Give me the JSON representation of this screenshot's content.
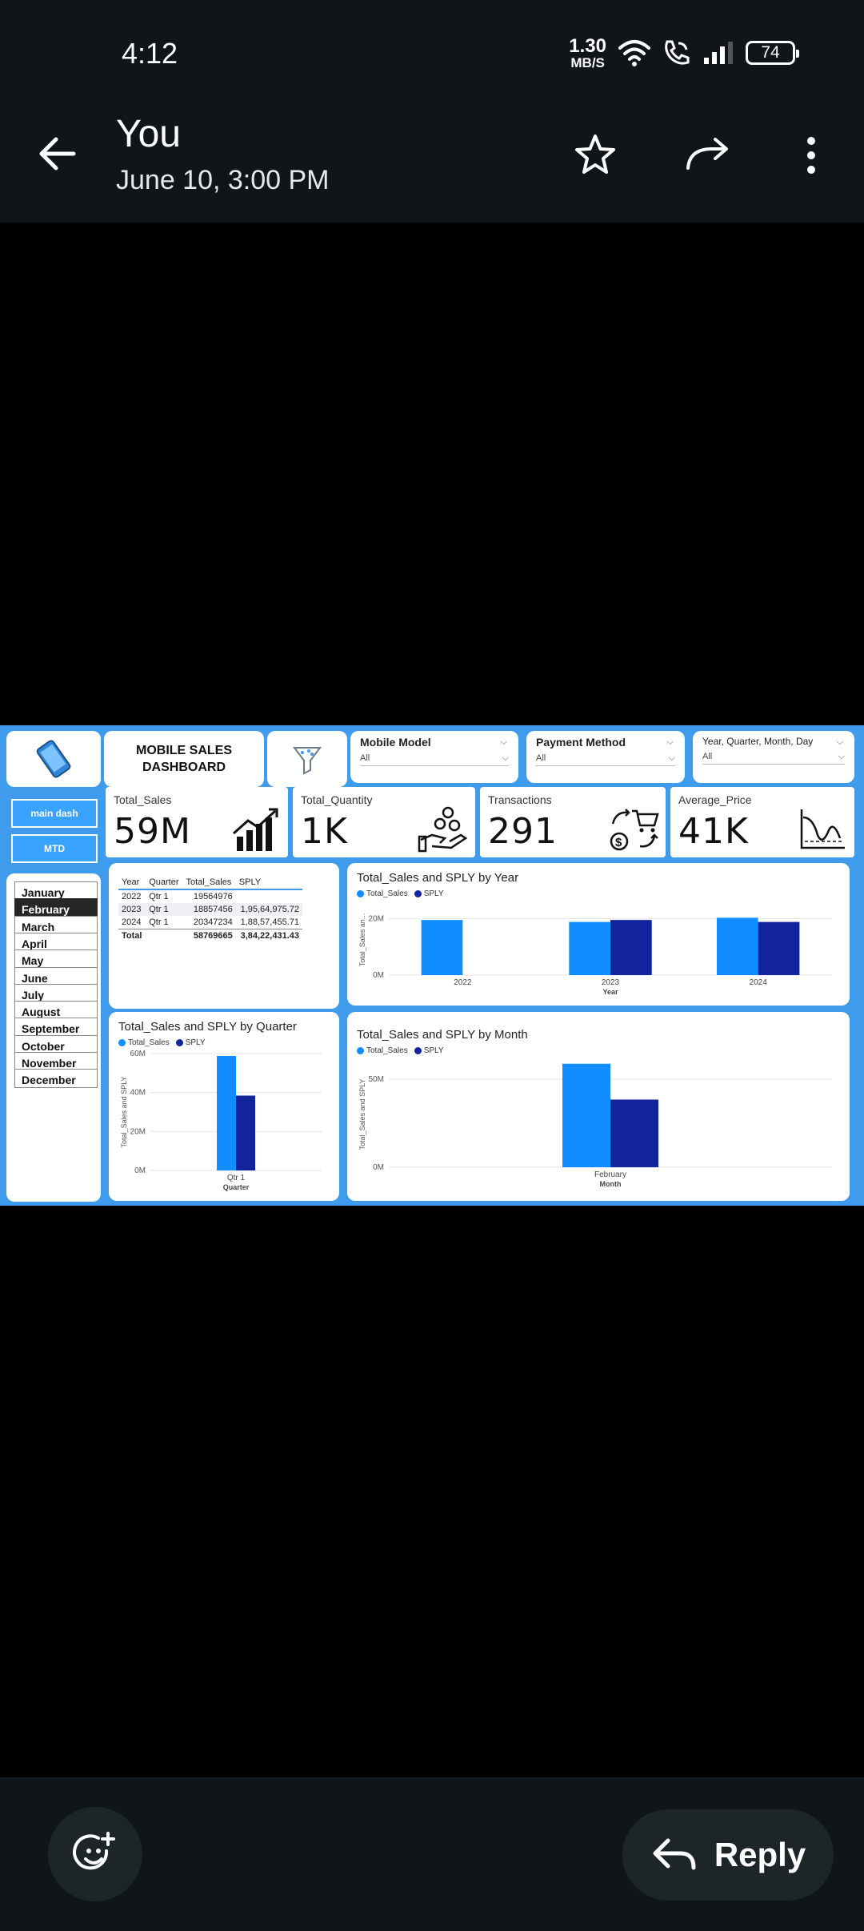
{
  "status": {
    "time": "4:12",
    "net_speed_value": "1.30",
    "net_speed_unit": "MB/S",
    "battery": "74"
  },
  "header": {
    "sender": "You",
    "datetime": "June 10, 3:00 PM",
    "icons": [
      "back-arrow-icon",
      "star-icon",
      "forward-icon",
      "more-vert-icon"
    ]
  },
  "dashboard": {
    "title": "MOBILE SALES DASHBOARD",
    "nav": {
      "main_dash": "main dash",
      "mtd": "MTD",
      "more": "..."
    },
    "slicers": [
      {
        "label": "Mobile Model",
        "value": "All"
      },
      {
        "label": "Payment Method",
        "value": "All"
      },
      {
        "label": "Year, Quarter, Month, Day",
        "value": "All"
      }
    ],
    "kpis": [
      {
        "label": "Total_Sales",
        "value": "59M",
        "icon": "growth-chart-icon"
      },
      {
        "label": "Total_Quantity",
        "value": "1K",
        "icon": "coins-hand-icon"
      },
      {
        "label": "Transactions",
        "value": "291",
        "icon": "cart-exchange-icon"
      },
      {
        "label": "Average_Price",
        "value": "41K",
        "icon": "distribution-curve-icon"
      }
    ],
    "months": [
      "January",
      "February",
      "March",
      "April",
      "May",
      "June",
      "July",
      "August",
      "September",
      "October",
      "November",
      "December"
    ],
    "selected_month": "February",
    "table": {
      "headers": [
        "Year",
        "Quarter",
        "Total_Sales",
        "SPLY"
      ],
      "rows": [
        [
          "2022",
          "Qtr 1",
          "19564976",
          ""
        ],
        [
          "2023",
          "Qtr 1",
          "18857456",
          "1,95,64,975.72"
        ],
        [
          "2024",
          "Qtr 1",
          "20347234",
          "1,88,57,455.71"
        ]
      ],
      "total": [
        "Total",
        "",
        "58769665",
        "3,84,22,431.43"
      ]
    },
    "colors": {
      "total_sales": "#118dff",
      "sply": "#12239e",
      "background": "#3f9bec"
    }
  },
  "chart_data": [
    {
      "type": "bar",
      "title": "Total_Sales and SPLY by Year",
      "xlabel": "Year",
      "ylabel": "Total_Sales an...",
      "categories": [
        "2022",
        "2023",
        "2024"
      ],
      "series": [
        {
          "name": "Total_Sales",
          "values": [
            19564976,
            18857456,
            20347234
          ]
        },
        {
          "name": "SPLY",
          "values": [
            null,
            19564975.72,
            18857455.71
          ]
        }
      ],
      "yticks": [
        "0M",
        "20M"
      ],
      "ylim": [
        0,
        25000000
      ]
    },
    {
      "type": "bar",
      "title": "Total_Sales and SPLY by Quarter",
      "xlabel": "Quarter",
      "ylabel": "Total_Sales and SPLY",
      "categories": [
        "Qtr 1"
      ],
      "series": [
        {
          "name": "Total_Sales",
          "values": [
            58769665
          ]
        },
        {
          "name": "SPLY",
          "values": [
            38422431.43
          ]
        }
      ],
      "yticks": [
        "0M",
        "20M",
        "40M",
        "60M"
      ],
      "ylim": [
        0,
        60000000
      ]
    },
    {
      "type": "bar",
      "title": "Total_Sales and SPLY by Month",
      "xlabel": "Month",
      "ylabel": "Total_Sales and SPLY",
      "categories": [
        "February"
      ],
      "series": [
        {
          "name": "Total_Sales",
          "values": [
            58769665
          ]
        },
        {
          "name": "SPLY",
          "values": [
            38422431.43
          ]
        }
      ],
      "yticks": [
        "0M",
        "50M"
      ],
      "ylim": [
        0,
        60000000
      ]
    }
  ],
  "footer": {
    "reply_label": "Reply"
  }
}
